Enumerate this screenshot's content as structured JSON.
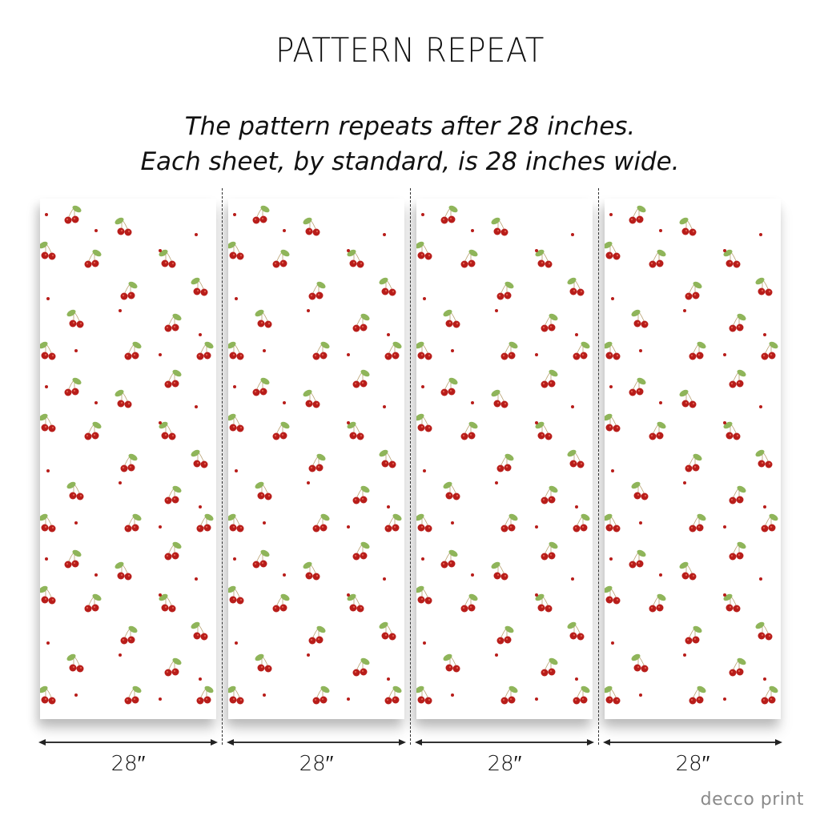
{
  "title": "PATTERN REPEAT",
  "subtitle_lines": [
    "The pattern repeats after 28 inches.",
    "Each sheet, by standard, is 28 inches wide."
  ],
  "sheets": [
    {
      "width_label": "28′′"
    },
    {
      "width_label": "28′′"
    },
    {
      "width_label": "28′′"
    },
    {
      "width_label": "28′′"
    }
  ],
  "pattern": {
    "motif": "cherries",
    "cherry_color": "#b81d1a",
    "leaf_color": "#8fb55a",
    "repeat_inches": 28
  },
  "brand": "decco print"
}
